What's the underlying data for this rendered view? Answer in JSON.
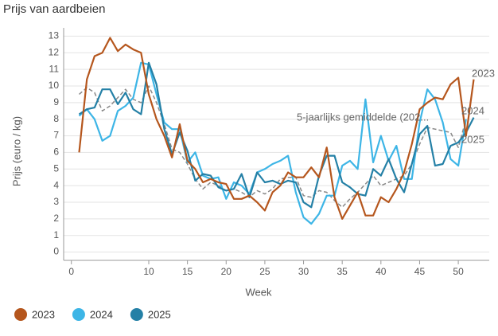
{
  "chart_data": {
    "type": "line",
    "title": "Prijs van aardbeien",
    "x_label": "Week",
    "y_label": "Prijs (euro / kg)",
    "x": [
      1,
      2,
      3,
      4,
      5,
      6,
      7,
      8,
      9,
      10,
      11,
      12,
      13,
      14,
      15,
      16,
      17,
      18,
      19,
      20,
      21,
      22,
      23,
      24,
      25,
      26,
      27,
      28,
      29,
      30,
      31,
      32,
      33,
      34,
      35,
      36,
      37,
      38,
      39,
      40,
      41,
      42,
      43,
      44,
      45,
      46,
      47,
      48,
      49,
      50,
      51,
      52
    ],
    "series": [
      {
        "name": "2023",
        "color": "#b5561d",
        "dashed": false,
        "values": [
          6.0,
          10.4,
          11.8,
          12.0,
          12.9,
          12.1,
          12.5,
          12.2,
          12.0,
          9.5,
          8.0,
          7.0,
          5.7,
          7.7,
          5.5,
          5.0,
          4.2,
          4.4,
          4.2,
          4.1,
          3.2,
          3.2,
          3.4,
          3.0,
          2.5,
          3.6,
          4.0,
          4.8,
          4.5,
          4.5,
          5.1,
          4.5,
          6.3,
          3.3,
          2.0,
          2.8,
          3.6,
          2.2,
          2.2,
          3.3,
          3.0,
          3.8,
          4.8,
          6.5,
          8.6,
          9.0,
          9.3,
          9.2,
          10.1,
          10.5,
          7.0,
          10.4
        ]
      },
      {
        "name": "2024",
        "color": "#3db5e6",
        "dashed": false,
        "values": [
          8.2,
          8.6,
          8.0,
          6.7,
          7.0,
          8.5,
          8.8,
          9.3,
          11.4,
          11.3,
          9.5,
          7.8,
          7.4,
          7.4,
          5.4,
          6.0,
          4.6,
          4.4,
          4.5,
          3.2,
          4.2,
          4.0,
          3.5,
          4.8,
          5.0,
          5.3,
          5.5,
          5.8,
          3.6,
          2.1,
          1.7,
          2.3,
          3.4,
          3.4,
          5.2,
          5.5,
          5.0,
          9.2,
          5.4,
          7.0,
          5.5,
          6.4,
          4.4,
          4.4,
          7.8,
          9.8,
          9.2,
          7.8,
          5.6,
          5.2,
          8.0,
          null
        ]
      },
      {
        "name": "2025",
        "color": "#2480a6",
        "dashed": false,
        "values": [
          8.3,
          8.6,
          8.7,
          9.8,
          9.8,
          8.9,
          9.6,
          8.6,
          8.3,
          11.4,
          10.1,
          7.4,
          5.9,
          7.2,
          6.1,
          4.3,
          4.7,
          4.6,
          3.9,
          3.7,
          3.8,
          4.7,
          3.3,
          4.8,
          4.2,
          4.3,
          4.1,
          4.3,
          4.2,
          3.0,
          2.7,
          4.6,
          5.8,
          5.8,
          4.2,
          3.9,
          3.5,
          3.4,
          5.0,
          4.6,
          5.6,
          4.4,
          3.6,
          5.3,
          7.1,
          7.6,
          5.2,
          5.3,
          6.4,
          6.6,
          7.2,
          8.1
        ]
      },
      {
        "name": "5-jaarlijks gemiddelde (202...",
        "color": "#888888",
        "dashed": true,
        "values": [
          9.5,
          9.9,
          9.6,
          8.5,
          8.8,
          9.3,
          9.8,
          9.2,
          9.0,
          10.0,
          9.0,
          7.7,
          6.2,
          6.0,
          5.3,
          4.4,
          3.8,
          4.2,
          4.0,
          3.7,
          3.8,
          3.6,
          3.3,
          3.7,
          3.5,
          3.8,
          4.4,
          4.5,
          4.5,
          3.4,
          3.3,
          3.7,
          3.6,
          3.1,
          2.7,
          3.2,
          3.6,
          4.1,
          4.6,
          4.0,
          4.2,
          4.4,
          4.6,
          5.3,
          6.5,
          7.5,
          7.4,
          7.3,
          7.2,
          6.3,
          8.0,
          null
        ]
      }
    ],
    "legend_series": [
      0,
      1,
      2
    ],
    "xlim": [
      -1,
      54
    ],
    "ylim": [
      -0.5,
      13.5
    ],
    "xticks": [
      0,
      10,
      15,
      20,
      25,
      30,
      35,
      40,
      45,
      50
    ],
    "yticks": [
      0,
      1,
      2,
      3,
      4,
      5,
      6,
      7,
      8,
      9,
      10,
      11,
      12,
      13
    ],
    "grid": true
  }
}
